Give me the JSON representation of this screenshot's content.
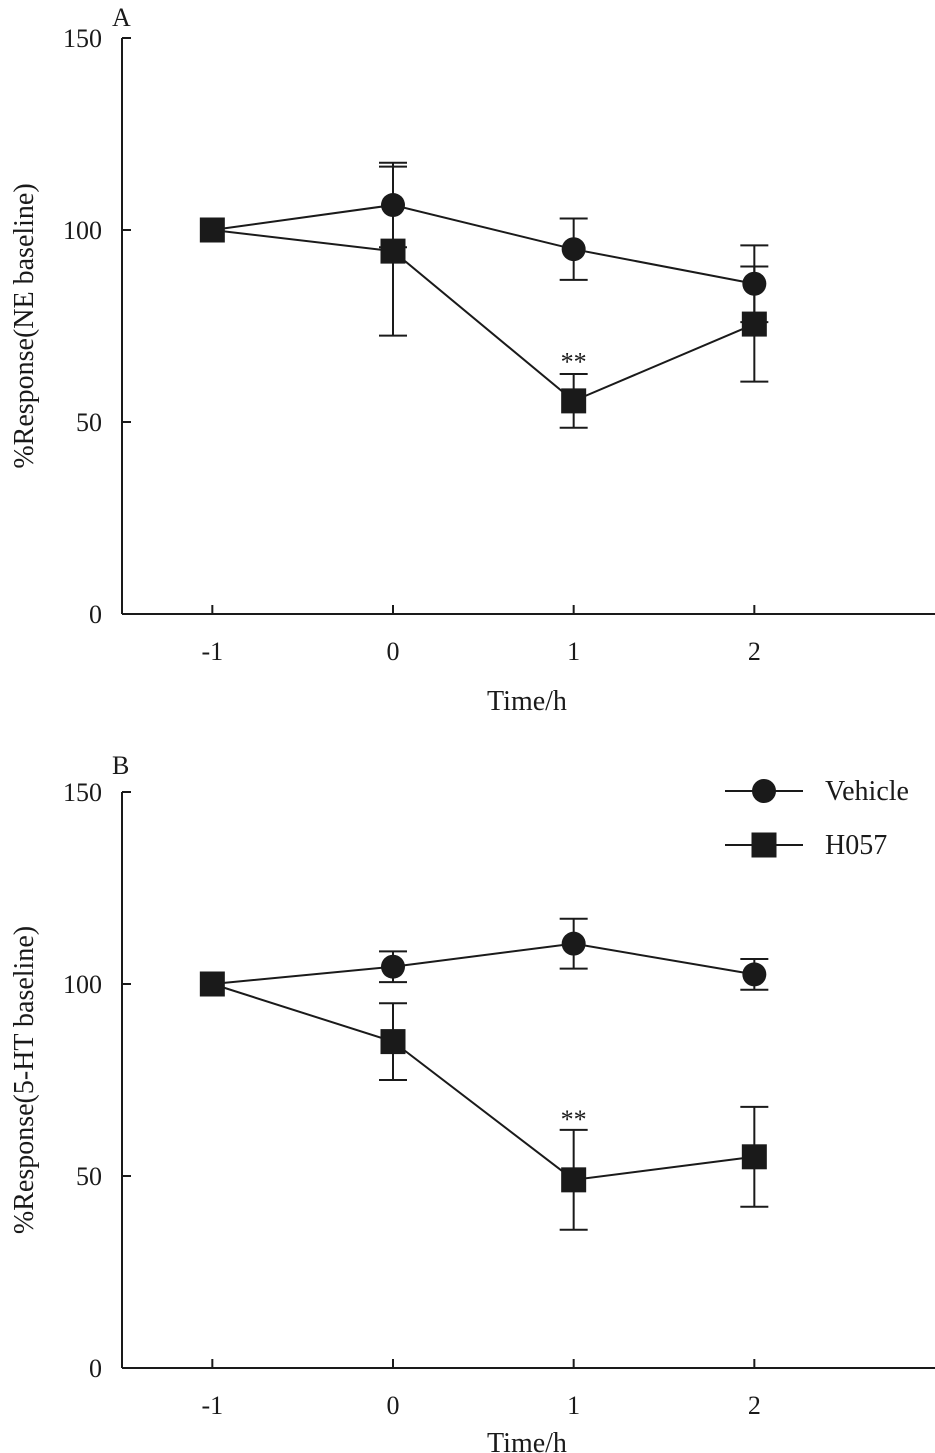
{
  "chart_data": [
    {
      "type": "line",
      "panel_label": "A",
      "xlabel": "Time/h",
      "ylabel": "%Response(NE baseline)",
      "x": [
        -1,
        0,
        1,
        2
      ],
      "xticks": [
        "-1",
        "0",
        "1",
        "2"
      ],
      "yticks": [
        "0",
        "50",
        "100",
        "150"
      ],
      "xlim": [
        -1.5,
        3.0
      ],
      "ylim": [
        0,
        150
      ],
      "grid": false,
      "series": [
        {
          "name": "Vehicle",
          "marker": "circle",
          "values": [
            100,
            106.5,
            95,
            86
          ],
          "errors": [
            0,
            11,
            8,
            10
          ]
        },
        {
          "name": "H057",
          "marker": "square",
          "values": [
            100,
            94.5,
            55.5,
            75.5
          ],
          "errors": [
            0,
            22,
            7,
            15
          ]
        }
      ],
      "annotations": [
        {
          "text": "**",
          "x": 1,
          "y": 65
        }
      ]
    },
    {
      "type": "line",
      "panel_label": "B",
      "xlabel": "Time/h",
      "ylabel": "%Response(5-HT baseline)",
      "x": [
        -1,
        0,
        1,
        2
      ],
      "xticks": [
        "-1",
        "0",
        "1",
        "2"
      ],
      "yticks": [
        "0",
        "50",
        "100",
        "150"
      ],
      "xlim": [
        -1.5,
        3.0
      ],
      "ylim": [
        0,
        150
      ],
      "grid": false,
      "legend_position": "top-right",
      "series": [
        {
          "name": "Vehicle",
          "marker": "circle",
          "values": [
            100,
            104.5,
            110.5,
            102.5
          ],
          "errors": [
            0,
            4,
            6.5,
            4
          ]
        },
        {
          "name": "H057",
          "marker": "square",
          "values": [
            100,
            85,
            49,
            55
          ],
          "errors": [
            0,
            10,
            13,
            13
          ]
        }
      ],
      "annotations": [
        {
          "text": "**",
          "x": 1,
          "y": 64
        }
      ]
    }
  ]
}
